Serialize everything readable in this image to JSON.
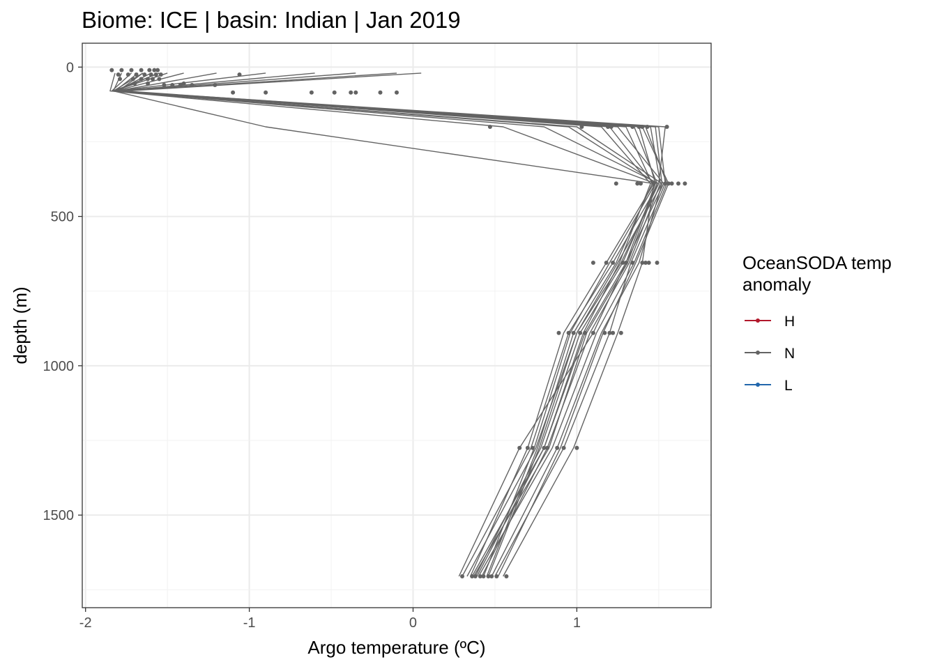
{
  "chart_data": {
    "type": "line",
    "title": "Biome: ICE | basin: Indian  | Jan 2019",
    "xlabel": "Argo temperature (ºC)",
    "ylabel": "depth (m)",
    "xlim": [
      -2.02,
      1.82
    ],
    "ylim": [
      1810,
      -80
    ],
    "y_reversed": true,
    "grid": true,
    "x_ticks": [
      -2,
      -1,
      0,
      1
    ],
    "x_tick_labels": [
      "-2",
      "-1",
      "0",
      "1"
    ],
    "y_ticks": [
      0,
      500,
      1000,
      1500
    ],
    "y_tick_labels": [
      "0",
      "500",
      "1000",
      "1500"
    ],
    "depth_levels": [
      20,
      80,
      200,
      390,
      655,
      890,
      1275,
      1705
    ],
    "legend": {
      "title_lines": [
        "OceanSODA temp",
        "anomaly"
      ],
      "placement": "right",
      "entries": [
        {
          "label": "H",
          "color": "#b2182b"
        },
        {
          "label": "N",
          "color": "#636363"
        },
        {
          "label": "L",
          "color": "#2166ac"
        }
      ]
    },
    "series_color": "#636363",
    "series": [
      {
        "values": [
          -1.82,
          -1.85,
          0.55,
          1.48,
          1.3,
          1.1,
          0.65,
          0.28
        ]
      },
      {
        "values": [
          -1.78,
          -1.83,
          0.8,
          1.5,
          1.22,
          0.95,
          0.72,
          0.3
        ]
      },
      {
        "values": [
          -1.72,
          -1.84,
          1.0,
          1.52,
          1.25,
          1.0,
          0.75,
          0.33
        ]
      },
      {
        "values": [
          -1.68,
          -1.82,
          1.2,
          1.47,
          1.18,
          0.92,
          0.7,
          0.35
        ]
      },
      {
        "values": [
          -1.65,
          -1.8,
          1.25,
          1.53,
          1.3,
          1.05,
          0.8,
          0.36
        ]
      },
      {
        "values": [
          -1.6,
          -1.81,
          1.35,
          1.49,
          1.28,
          1.02,
          0.78,
          0.38
        ]
      },
      {
        "values": [
          -1.55,
          -1.82,
          1.42,
          1.55,
          1.35,
          1.12,
          0.85,
          0.4
        ]
      },
      {
        "values": [
          -1.5,
          -1.83,
          1.45,
          1.51,
          1.32,
          1.08,
          0.82,
          0.42
        ]
      },
      {
        "values": [
          -1.4,
          -1.82,
          1.3,
          1.46,
          1.24,
          0.98,
          0.76,
          0.45
        ]
      },
      {
        "values": [
          -1.2,
          -1.81,
          1.48,
          1.52,
          1.38,
          1.15,
          0.88,
          0.48
        ]
      },
      {
        "values": [
          -0.9,
          -1.82,
          1.5,
          1.54,
          1.33,
          1.2,
          0.92,
          0.5
        ]
      },
      {
        "values": [
          -0.6,
          -1.8,
          1.54,
          1.5,
          1.27,
          1.0,
          0.77,
          0.46
        ]
      },
      {
        "values": [
          -0.35,
          -1.8,
          1.38,
          1.48,
          1.2,
          0.96,
          0.74,
          0.43
        ]
      },
      {
        "values": [
          -0.1,
          -1.78,
          1.15,
          1.45,
          1.26,
          1.04,
          0.8,
          0.39
        ]
      },
      {
        "values": [
          0.05,
          -1.76,
          1.4,
          1.56,
          1.36,
          1.16,
          0.9,
          0.52
        ]
      },
      {
        "values": [
          -1.65,
          -1.83,
          -0.9,
          1.47,
          1.4,
          1.25,
          0.98,
          0.55
        ]
      },
      {
        "values": [
          -1.55,
          -1.83,
          0.95,
          1.49,
          1.31,
          1.06,
          0.83,
          0.37
        ]
      }
    ],
    "points": [
      {
        "depth": 10,
        "x": [
          -1.84,
          -1.78,
          -1.72,
          -1.66,
          -1.61,
          -1.58,
          -1.56
        ]
      },
      {
        "depth": 25,
        "x": [
          -1.8,
          -1.74,
          -1.69,
          -1.64,
          -1.6,
          -1.57,
          -1.54,
          -1.06
        ]
      },
      {
        "depth": 40,
        "x": [
          -1.79,
          -1.71,
          -1.66,
          -1.62,
          -1.59,
          -1.55
        ]
      },
      {
        "depth": 55,
        "x": [
          -1.7,
          -1.62,
          -1.4
        ]
      },
      {
        "depth": 60,
        "x": [
          -1.52,
          -1.47,
          -1.42,
          -1.35,
          -1.21
        ]
      },
      {
        "depth": 85,
        "x": [
          -1.1,
          -0.9,
          -0.62,
          -0.48,
          -0.38,
          -0.35,
          -0.2,
          -0.1
        ]
      },
      {
        "depth": 200,
        "x": [
          0.47,
          1.03,
          1.19,
          1.21,
          1.34,
          1.38,
          1.4,
          1.43,
          1.55
        ]
      },
      {
        "depth": 390,
        "x": [
          1.24,
          1.37,
          1.39,
          1.47,
          1.54,
          1.56,
          1.58,
          1.62,
          1.66
        ]
      },
      {
        "depth": 655,
        "x": [
          1.1,
          1.18,
          1.22,
          1.28,
          1.3,
          1.34,
          1.4,
          1.42,
          1.44,
          1.49
        ]
      },
      {
        "depth": 890,
        "x": [
          0.89,
          0.95,
          0.98,
          1.02,
          1.05,
          1.1,
          1.17,
          1.2,
          1.22,
          1.27
        ]
      },
      {
        "depth": 1275,
        "x": [
          0.65,
          0.7,
          0.73,
          0.8,
          0.82,
          0.88,
          0.92,
          1.0
        ]
      },
      {
        "depth": 1705,
        "x": [
          0.3,
          0.36,
          0.38,
          0.41,
          0.43,
          0.46,
          0.48,
          0.51,
          0.57
        ]
      }
    ]
  }
}
